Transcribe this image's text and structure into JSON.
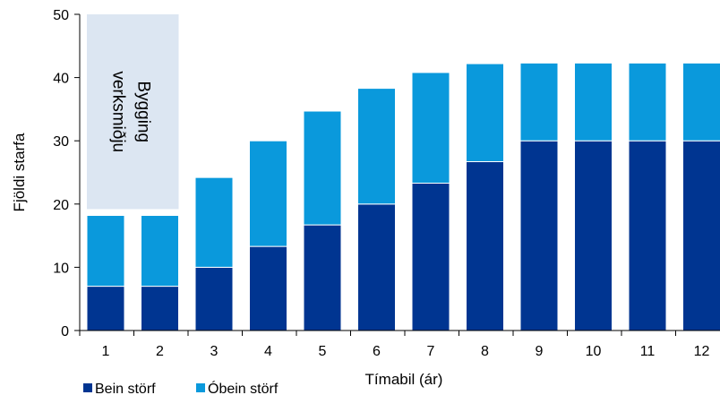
{
  "chart_data": {
    "type": "bar",
    "stacked": true,
    "title": "",
    "xlabel": "Tímabil (ár)",
    "ylabel": "Fjöldi starfa",
    "ylim": [
      0,
      50
    ],
    "yticks": [
      0,
      10,
      20,
      30,
      40,
      50
    ],
    "categories": [
      "1",
      "2",
      "3",
      "4",
      "5",
      "6",
      "7",
      "8",
      "9",
      "10",
      "11",
      "12"
    ],
    "series": [
      {
        "name": "Bein störf",
        "color": "#003591",
        "values": [
          7,
          7,
          10,
          13.3,
          16.7,
          20,
          23.3,
          26.7,
          30,
          30,
          30,
          30
        ]
      },
      {
        "name": "Óbein störf",
        "color": "#0a99dc",
        "values": [
          11.2,
          11.2,
          14.2,
          16.7,
          18,
          18.3,
          17.5,
          15.5,
          12.3,
          12.3,
          12.3,
          12.3
        ]
      }
    ],
    "annotation": {
      "lines": [
        "Bygging",
        "verksmiðju"
      ],
      "color": "#dce6f2",
      "covers_categories": [
        "1",
        "2"
      ],
      "range": [
        19.2,
        50
      ]
    },
    "legend_position": "bottom-left",
    "grid": false
  }
}
